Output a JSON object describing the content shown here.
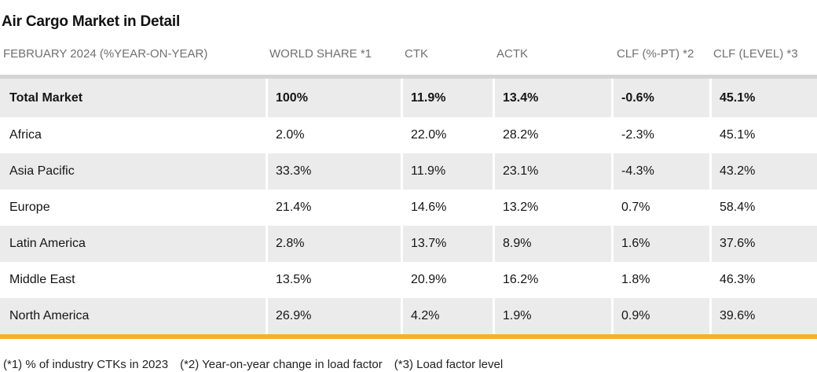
{
  "title": "Air Cargo Market in Detail",
  "headers": [
    "FEBRUARY 2024 (%YEAR-ON-YEAR)",
    "WORLD SHARE *1",
    "CTK",
    "ACTK",
    "CLF (%-PT) *2",
    "CLF (LEVEL) *3"
  ],
  "rows": [
    [
      "Total Market",
      "100%",
      "11.9%",
      "13.4%",
      "-0.6%",
      "45.1%"
    ],
    [
      "Africa",
      "2.0%",
      "22.0%",
      "28.2%",
      "-2.3%",
      "45.1%"
    ],
    [
      "Asia Pacific",
      "33.3%",
      "11.9%",
      "23.1%",
      "-4.3%",
      "43.2%"
    ],
    [
      "Europe",
      "21.4%",
      "14.6%",
      "13.2%",
      "0.7%",
      "58.4%"
    ],
    [
      "Latin America",
      "2.8%",
      "13.7%",
      "8.9%",
      "1.6%",
      "37.6%"
    ],
    [
      "Middle East",
      "13.5%",
      "20.9%",
      "16.2%",
      "1.8%",
      "46.3%"
    ],
    [
      "North America",
      "26.9%",
      "4.2%",
      "1.9%",
      "0.9%",
      "39.6%"
    ]
  ],
  "footnotes": [
    "(*1) % of industry CTKs in 2023",
    "(*2) Year-on-year change in load factor",
    "(*3) Load factor level"
  ],
  "colors": {
    "accent_rule": "#f0b429",
    "row_shade": "#ebebeb",
    "header_text": "#707070"
  }
}
